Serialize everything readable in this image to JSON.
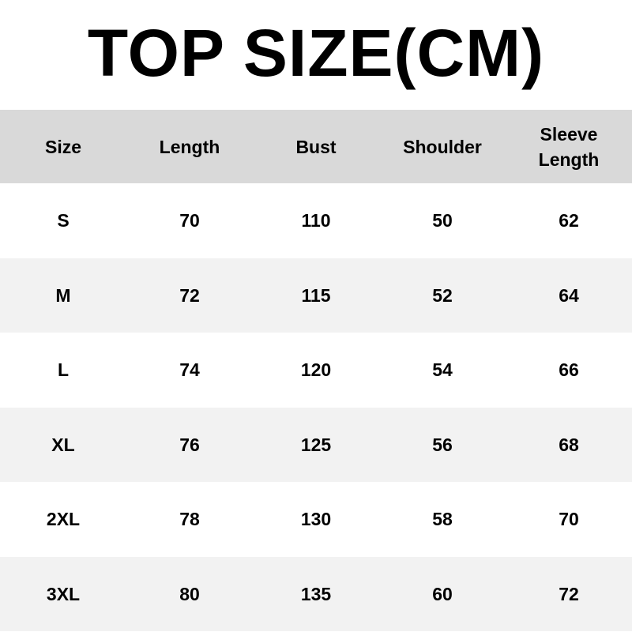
{
  "title": "TOP SIZE(CM)",
  "colors": {
    "header_bg": "#d9d9d9",
    "alt_row_bg": "#f2f2f2",
    "row_bg": "#ffffff"
  },
  "table": {
    "headers": [
      "Size",
      "Length",
      "Bust",
      "Shoulder",
      "Sleeve Length"
    ],
    "rows": [
      [
        "S",
        "70",
        "110",
        "50",
        "62"
      ],
      [
        "M",
        "72",
        "115",
        "52",
        "64"
      ],
      [
        "L",
        "74",
        "120",
        "54",
        "66"
      ],
      [
        "XL",
        "76",
        "125",
        "56",
        "68"
      ],
      [
        "2XL",
        "78",
        "130",
        "58",
        "70"
      ],
      [
        "3XL",
        "80",
        "135",
        "60",
        "72"
      ]
    ]
  }
}
